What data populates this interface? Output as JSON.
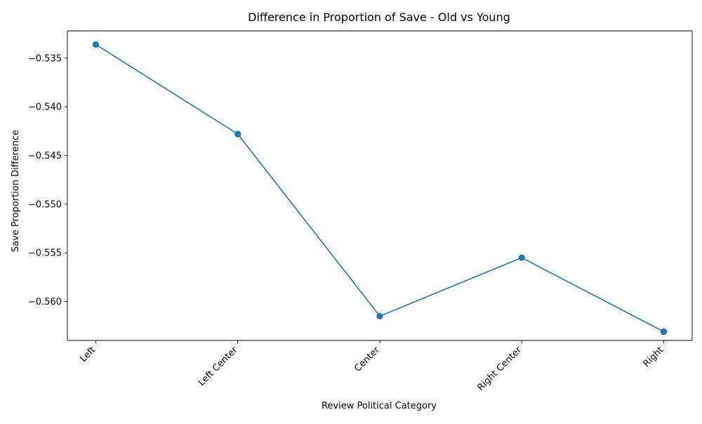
{
  "chart_data": {
    "type": "line",
    "title": "Difference in Proportion of Save - Old vs Young",
    "xlabel": "Review Political Category",
    "ylabel": "Save Proportion Difference",
    "categories": [
      "Left",
      "Left Center",
      "Center",
      "Right Center",
      "Right"
    ],
    "series": [
      {
        "values": [
          -0.5336,
          -0.5428,
          -0.5615,
          -0.5555,
          -0.5631
        ],
        "color": "#1f77b4",
        "marker": "circle"
      }
    ],
    "ylim": [
      -0.564,
      -0.5322
    ],
    "yticks": [
      -0.535,
      -0.54,
      -0.545,
      -0.55,
      -0.555,
      -0.56
    ],
    "ytick_labels": [
      "−0.535",
      "−0.540",
      "−0.545",
      "−0.550",
      "−0.555",
      "−0.560"
    ],
    "xtick_rotation": 45,
    "grid": false,
    "legend": "none"
  }
}
